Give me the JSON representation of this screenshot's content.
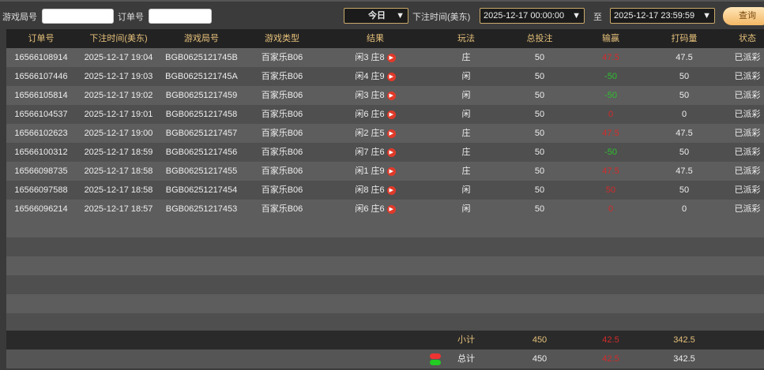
{
  "filters": {
    "game_round_label": "游戏局号",
    "game_round_value": "",
    "order_label": "订单号",
    "order_value": "",
    "period": "今日",
    "time_label": "下注时间(美东)",
    "start": "2025-12-17 00:00:00",
    "to_label": "至",
    "end": "2025-12-17 23:59:59",
    "query_label": "查询"
  },
  "columns": [
    "订单号",
    "下注时间(美东)",
    "游戏局号",
    "游戏类型",
    "结果",
    "玩法",
    "总投注",
    "输赢",
    "打码量",
    "状态"
  ],
  "rows": [
    {
      "order": "16566108914",
      "time": "2025-12-17 19:04",
      "round": "BGB0625121745B",
      "type": "百家乐B06",
      "result": "闲3 庄8",
      "play": "庄",
      "bet": "50",
      "win": "47.5",
      "win_color": "red",
      "valid": "47.5",
      "status": "已派彩"
    },
    {
      "order": "16566107446",
      "time": "2025-12-17 19:03",
      "round": "BGB0625121745A",
      "type": "百家乐B06",
      "result": "闲4 庄9",
      "play": "闲",
      "bet": "50",
      "win": "-50",
      "win_color": "green",
      "valid": "50",
      "status": "已派彩"
    },
    {
      "order": "16566105814",
      "time": "2025-12-17 19:02",
      "round": "BGB06251217459",
      "type": "百家乐B06",
      "result": "闲3 庄8",
      "play": "闲",
      "bet": "50",
      "win": "-50",
      "win_color": "green",
      "valid": "50",
      "status": "已派彩"
    },
    {
      "order": "16566104537",
      "time": "2025-12-17 19:01",
      "round": "BGB06251217458",
      "type": "百家乐B06",
      "result": "闲6 庄6",
      "play": "闲",
      "bet": "50",
      "win": "0",
      "win_color": "red",
      "valid": "0",
      "status": "已派彩"
    },
    {
      "order": "16566102623",
      "time": "2025-12-17 19:00",
      "round": "BGB06251217457",
      "type": "百家乐B06",
      "result": "闲2 庄5",
      "play": "庄",
      "bet": "50",
      "win": "47.5",
      "win_color": "red",
      "valid": "47.5",
      "status": "已派彩"
    },
    {
      "order": "16566100312",
      "time": "2025-12-17 18:59",
      "round": "BGB06251217456",
      "type": "百家乐B06",
      "result": "闲7 庄6",
      "play": "庄",
      "bet": "50",
      "win": "-50",
      "win_color": "green",
      "valid": "50",
      "status": "已派彩"
    },
    {
      "order": "16566098735",
      "time": "2025-12-17 18:58",
      "round": "BGB06251217455",
      "type": "百家乐B06",
      "result": "闲1 庄9",
      "play": "庄",
      "bet": "50",
      "win": "47.5",
      "win_color": "red",
      "valid": "47.5",
      "status": "已派彩"
    },
    {
      "order": "16566097588",
      "time": "2025-12-17 18:58",
      "round": "BGB06251217454",
      "type": "百家乐B06",
      "result": "闲8 庄6",
      "play": "闲",
      "bet": "50",
      "win": "50",
      "win_color": "red",
      "valid": "50",
      "status": "已派彩"
    },
    {
      "order": "16566096214",
      "time": "2025-12-17 18:57",
      "round": "BGB06251217453",
      "type": "百家乐B06",
      "result": "闲6 庄6",
      "play": "闲",
      "bet": "50",
      "win": "0",
      "win_color": "red",
      "valid": "0",
      "status": "已派彩"
    }
  ],
  "subtotal": {
    "label": "小计",
    "bet": "450",
    "win": "42.5",
    "valid": "342.5"
  },
  "total": {
    "label": "总计",
    "bet": "450",
    "win": "42.5",
    "valid": "342.5",
    "icon": "refresh-icon"
  },
  "colors": {
    "win_red": "#d42a2a",
    "loss_green": "#2ec02e",
    "accent_gold": "#e6c07a"
  }
}
